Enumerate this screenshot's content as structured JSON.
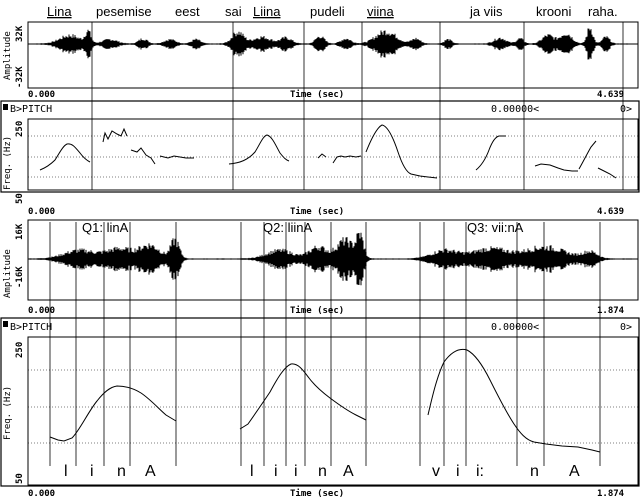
{
  "colors": {
    "ink": "#000000",
    "background": "#ffffff"
  },
  "top_words": [
    {
      "text": "Lina",
      "underlined": true
    },
    {
      "text": "pesemise",
      "underlined": false
    },
    {
      "text": "eest",
      "underlined": false
    },
    {
      "text": "sai",
      "underlined": false
    },
    {
      "text": "Liina",
      "underlined": true
    },
    {
      "text": "pudeli",
      "underlined": false
    },
    {
      "text": "viina",
      "underlined": true
    },
    {
      "text": "ja viis",
      "underlined": false
    },
    {
      "text": "krooni",
      "underlined": false
    },
    {
      "text": "raha.",
      "underlined": false
    }
  ],
  "panel1": {
    "ylabel": "Amplitude",
    "ytick_top": "32K",
    "ytick_bottom": "-32K",
    "x_start": "0.000",
    "x_end": "4.639",
    "xlabel": "Time (sec)"
  },
  "panel2": {
    "header": "B>PITCH",
    "readout": "0.00000<",
    "readout_right": "0>",
    "ylabel": "Freq. (Hz)",
    "ytick_top": "250",
    "ytick_bottom": "50",
    "x_start": "0.000",
    "x_end": "4.639",
    "xlabel": "Time (sec)"
  },
  "panel3": {
    "ylabel": "Amplitude",
    "ytick_top": "16K",
    "ytick_bottom": "-16K",
    "x_start": "0.000",
    "x_end": "1.874",
    "xlabel": "Time (sec)",
    "labels": [
      "Q1: linA",
      "Q2: liinA",
      "Q3: vii:nA"
    ]
  },
  "panel4": {
    "header": "B>PITCH",
    "readout": "0.00000<",
    "readout_right": "0>",
    "ylabel": "Freq. (Hz)",
    "ytick_top": "250",
    "ytick_bottom": "50",
    "x_start": "0.000",
    "x_end": "1.874",
    "xlabel": "Time (sec)",
    "segments": [
      "l",
      "i",
      "n",
      "A",
      "l",
      "i",
      "i",
      "n",
      "A",
      "v",
      "i",
      "i:",
      "n",
      "A"
    ]
  }
}
